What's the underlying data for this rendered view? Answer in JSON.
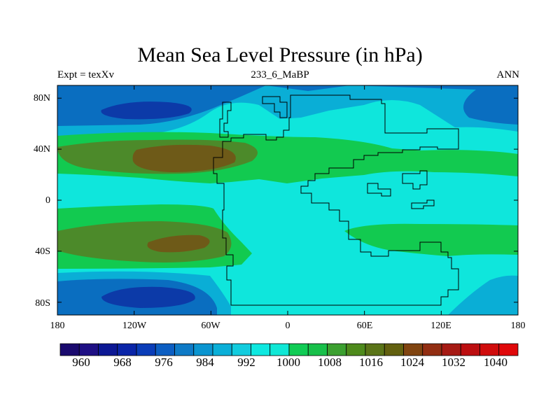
{
  "title": "Mean Sea Level Pressure (in hPa)",
  "subtitle_left": "Expt = texXv",
  "subtitle_center": "233_6_MaBP",
  "subtitle_right": "ANN",
  "map": {
    "projection": "cylindrical-equidistant",
    "lon_range": [
      -180,
      180
    ],
    "lat_range": [
      -90,
      90
    ],
    "x_ticks": [
      "180",
      "120W",
      "60W",
      "0",
      "60E",
      "120E",
      "180"
    ],
    "y_ticks": [
      "80N",
      "40N",
      "0",
      "40S",
      "80S"
    ]
  },
  "colorbar": {
    "levels": [
      "960",
      "968",
      "976",
      "984",
      "992",
      "1000",
      "1008",
      "1016",
      "1024",
      "1032",
      "1040"
    ],
    "colors": [
      "#1a0a6e",
      "#1e0f84",
      "#0c1894",
      "#0a25a8",
      "#0a3db8",
      "#0c5ec2",
      "#0e7ac6",
      "#0b95d0",
      "#0aafd8",
      "#12ccde",
      "#0ee8e0",
      "#10e8d6",
      "#10cc55",
      "#18c04a",
      "#3ca030",
      "#4e8a1c",
      "#5a7418",
      "#62600f",
      "#804410",
      "#922e12",
      "#a61a14",
      "#bc0e10",
      "#d00c0c",
      "#e0080a"
    ]
  },
  "fields": {
    "background": "#0fe6dc",
    "band_1004": "#12ca50",
    "band_1012": "#4c8a2a",
    "band_1018": "#6e5a18",
    "band_996": "#0aaed6",
    "band_988": "#0a6ec0",
    "band_980": "#0c3aa8",
    "coastline": "#000000"
  }
}
